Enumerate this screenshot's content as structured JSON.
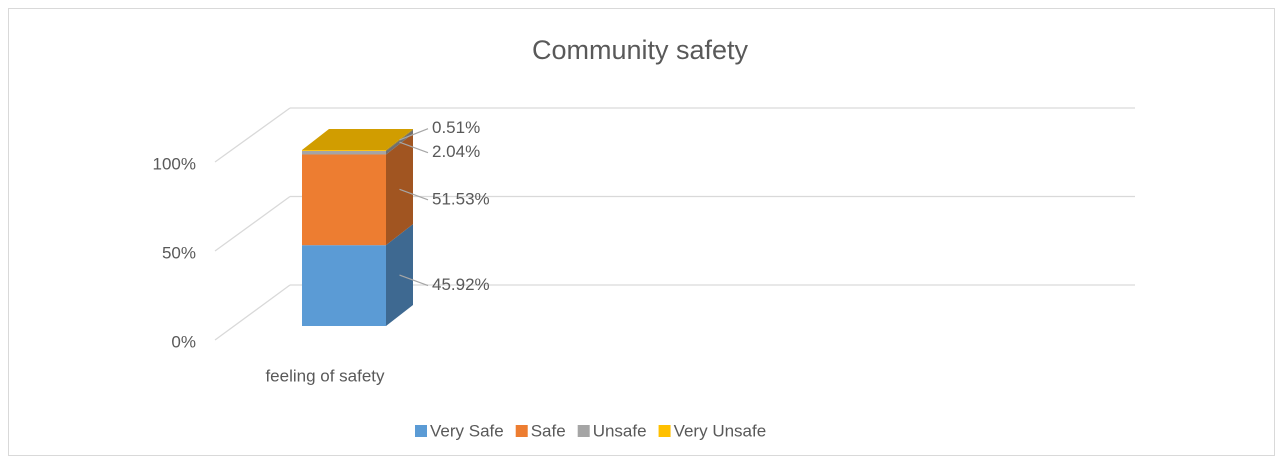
{
  "chart_data": {
    "type": "bar3d_stacked",
    "title": "Community safety",
    "categories": [
      "feeling of safety"
    ],
    "series": [
      {
        "name": "Very Safe",
        "color": "#5b9bd5",
        "values": [
          45.92
        ],
        "value_labels": [
          "45.92%"
        ]
      },
      {
        "name": "Safe",
        "color": "#ed7d31",
        "values": [
          51.53
        ],
        "value_labels": [
          "51.53%"
        ]
      },
      {
        "name": "Unsafe",
        "color": "#a5a5a5",
        "values": [
          2.04
        ],
        "value_labels": [
          "2.04%"
        ]
      },
      {
        "name": "Very Unsafe",
        "color": "#ffc000",
        "values": [
          0.51
        ],
        "value_labels": [
          "0.51%"
        ]
      }
    ],
    "ylim": [
      0,
      100
    ],
    "yticks": [
      {
        "value": 0,
        "label": "0%"
      },
      {
        "value": 50,
        "label": "50%"
      },
      {
        "value": 100,
        "label": "100%"
      }
    ],
    "grid": true,
    "legend": "bottom"
  }
}
